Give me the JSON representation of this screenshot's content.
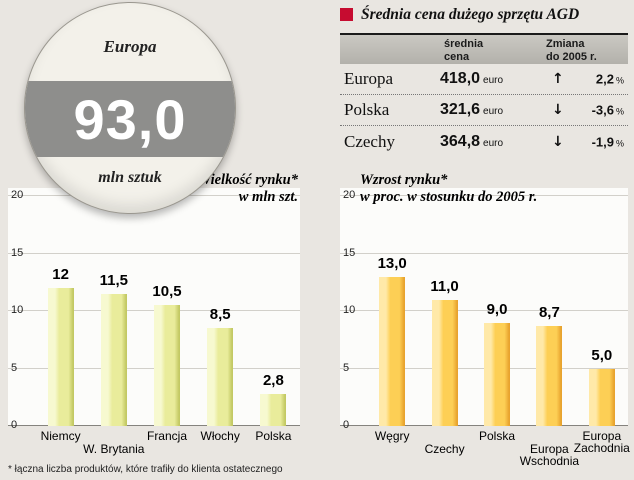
{
  "badge": {
    "region": "Europa",
    "value": "93,0",
    "unit": "mln sztuk"
  },
  "price_table": {
    "title": "Średnia cena dużego sprzętu AGD",
    "columns": {
      "price": "średnia\ncena",
      "change": "Zmiana\ndo 2005 r."
    },
    "currency_label": "euro",
    "percent_label": "%",
    "rows": [
      {
        "name": "Europa",
        "price": "418,0",
        "arrow": "↑",
        "direction": "up",
        "change": "2,2"
      },
      {
        "name": "Polska",
        "price": "321,6",
        "arrow": "↓",
        "direction": "down",
        "change": "-3,6"
      },
      {
        "name": "Czechy",
        "price": "364,8",
        "arrow": "↓",
        "direction": "down",
        "change": "-1,9"
      }
    ]
  },
  "footnote": "* łączna liczba produktów, które trafiły do klienta ostatecznego",
  "chart_data": [
    {
      "type": "bar",
      "title": "Wielkość rynku*\nw mln szt.",
      "categories": [
        "Niemcy",
        "W. Brytania",
        "Francja",
        "Włochy",
        "Polska"
      ],
      "values": [
        12,
        11.5,
        10.5,
        8.5,
        2.8
      ],
      "value_labels": [
        "12",
        "11,5",
        "10,5",
        "8,5",
        "2,8"
      ],
      "xlabel": "",
      "ylabel": "mln szt.",
      "ylim": [
        0,
        20
      ],
      "yticks": [
        0,
        5,
        10,
        15,
        20
      ],
      "grid": true,
      "legend": false,
      "bar_colors": {
        "light": "#f7f9d0",
        "main": "#e9ec9b",
        "dark": "#c3c964"
      },
      "label_rows": [
        0,
        1,
        0,
        0,
        0
      ]
    },
    {
      "type": "bar",
      "title": "Wzrost rynku*\nw proc. w stosunku do 2005 r.",
      "categories": [
        "Węgry",
        "Czechy",
        "Polska",
        "Europa\nWschodnia",
        "Europa\nZachodnia"
      ],
      "values": [
        13.0,
        11.0,
        9.0,
        8.7,
        5.0
      ],
      "value_labels": [
        "13,0",
        "11,0",
        "9,0",
        "8,7",
        "5,0"
      ],
      "xlabel": "",
      "ylabel": "proc.",
      "ylim": [
        0,
        20
      ],
      "yticks": [
        0,
        5,
        10,
        15,
        20
      ],
      "grid": true,
      "legend": false,
      "bar_colors": {
        "light": "#ffe9a8",
        "main": "#fdcf55",
        "dark": "#e8a32e"
      },
      "label_rows": [
        0,
        1,
        0,
        1,
        0
      ]
    }
  ],
  "colors": {
    "background": "#e9e6e1",
    "panel": "#fcfcfa",
    "accent_red": "#c60c30",
    "band_gray": "#8e8e8c"
  }
}
